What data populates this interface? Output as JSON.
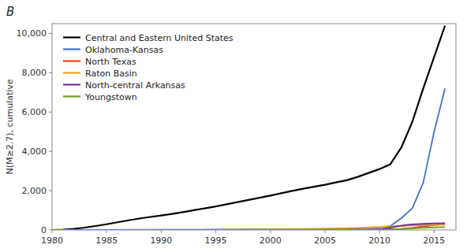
{
  "chart_data": {
    "type": "line",
    "annotations": [
      "B"
    ],
    "ylabel": "N(M≥2.7), cumulative",
    "xlim": [
      1980,
      2017
    ],
    "ylim": [
      0,
      10500
    ],
    "xticks": [
      1980,
      1985,
      1990,
      1995,
      2000,
      2005,
      2010,
      2015
    ],
    "yticks": [
      0,
      {
        "value": 2000,
        "label": "2,000"
      },
      {
        "value": 4000,
        "label": "4,000"
      },
      {
        "value": 6000,
        "label": "6,000"
      },
      {
        "value": 8000,
        "label": "8,000"
      },
      {
        "value": 10000,
        "label": "10,000"
      }
    ],
    "grid": false,
    "legend": "upper left",
    "series": [
      {
        "name": "Central and Eastern United States",
        "color": "#000000",
        "x": [
          1980,
          1981,
          1982,
          1983,
          1984,
          1985,
          1986,
          1987,
          1988,
          1989,
          1990,
          1991,
          1992,
          1993,
          1994,
          1995,
          1996,
          1997,
          1998,
          1999,
          2000,
          2001,
          2002,
          2003,
          2004,
          2005,
          2006,
          2007,
          2008,
          2009,
          2010,
          2011,
          2012,
          2013,
          2014,
          2015,
          2016
        ],
        "values": [
          0,
          20,
          60,
          120,
          200,
          290,
          390,
          490,
          580,
          660,
          740,
          820,
          910,
          1010,
          1100,
          1200,
          1310,
          1420,
          1530,
          1640,
          1750,
          1870,
          1990,
          2100,
          2200,
          2300,
          2420,
          2530,
          2700,
          2900,
          3100,
          3350,
          4200,
          5500,
          7200,
          8800,
          10400
        ]
      },
      {
        "name": "Oklahoma-Kansas",
        "color": "#4472C4",
        "x": [
          1980,
          1985,
          1990,
          1995,
          2000,
          2005,
          2008,
          2009,
          2010,
          2011,
          2012,
          2013,
          2014,
          2015,
          2016
        ],
        "values": [
          0,
          5,
          10,
          20,
          35,
          55,
          80,
          100,
          130,
          200,
          600,
          1100,
          2400,
          5000,
          7200
        ]
      },
      {
        "name": "North Texas",
        "color": "#E8401C",
        "x": [
          1980,
          1990,
          2000,
          2008,
          2010,
          2012,
          2013,
          2014,
          2015,
          2016
        ],
        "values": [
          0,
          2,
          5,
          10,
          20,
          50,
          100,
          180,
          250,
          300
        ]
      },
      {
        "name": "Raton Basin",
        "color": "#E8A020",
        "x": [
          1980,
          1985,
          1990,
          1995,
          2000,
          2005,
          2008,
          2010,
          2012,
          2013,
          2014,
          2015,
          2016
        ],
        "values": [
          0,
          2,
          5,
          10,
          25,
          60,
          100,
          150,
          200,
          230,
          250,
          260,
          270
        ]
      },
      {
        "name": "North-central Arkansas",
        "color": "#7030A0",
        "x": [
          1980,
          1990,
          2000,
          2008,
          2009,
          2010,
          2011,
          2012,
          2013,
          2014,
          2015,
          2016
        ],
        "values": [
          0,
          2,
          5,
          10,
          15,
          30,
          120,
          220,
          280,
          310,
          330,
          340
        ]
      },
      {
        "name": "Youngstown",
        "color": "#70A020",
        "x": [
          1980,
          1990,
          2000,
          2010,
          2011,
          2012,
          2013,
          2014,
          2015,
          2016
        ],
        "values": [
          0,
          2,
          5,
          10,
          20,
          50,
          80,
          110,
          130,
          145
        ]
      }
    ]
  }
}
